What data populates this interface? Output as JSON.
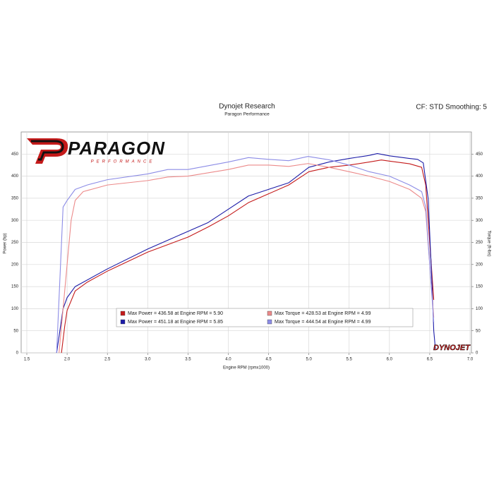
{
  "chart_data": {
    "type": "line",
    "title": "Dynojet Research",
    "subtitle": "Paragon Performance",
    "annotation": "CF: STD Smoothing: 5",
    "logo": {
      "text": "PARAGON",
      "tagline": "PERFORMANCE"
    },
    "brand": "DYNOJET",
    "xlabel": "Engine RPM (rpmx1000)",
    "ylabel": "Power (hp)",
    "y2label": "Torque (ft-lbs)",
    "xlim": [
      1.5,
      7.0
    ],
    "xticks": [
      1.5,
      {
        "value": 2,
        "label": "2.0"
      },
      2.5,
      {
        "value": 3,
        "label": "3.0"
      },
      3.5,
      {
        "value": 4,
        "label": "4.0"
      },
      4.5,
      {
        "value": 5,
        "label": "5.0"
      },
      5.5,
      {
        "value": 6,
        "label": "6.0"
      },
      6.5,
      {
        "value": 7,
        "label": "7.0"
      }
    ],
    "ylim": [
      0,
      500
    ],
    "yticks": [
      0,
      50,
      100,
      150,
      200,
      250,
      300,
      350,
      400,
      450
    ],
    "y2lim": [
      0,
      500
    ],
    "y2ticks": [
      0,
      50,
      100,
      150,
      200,
      250,
      300,
      350,
      400,
      450
    ],
    "grid": true,
    "legend": "lower center",
    "series": [
      {
        "name": "Max Power = 436.58 at Engine RPM = 5.90",
        "color": "#c41a1a",
        "x": [
          1.93,
          1.97,
          2.0,
          2.1,
          2.25,
          2.5,
          3.0,
          3.25,
          3.5,
          3.75,
          4.0,
          4.25,
          4.5,
          4.75,
          5.0,
          5.25,
          5.5,
          5.75,
          5.9,
          6.0,
          6.25,
          6.4,
          6.45,
          6.5,
          6.55
        ],
        "values": [
          0,
          60,
          96,
          140,
          160,
          185,
          228,
          245,
          262,
          285,
          310,
          340,
          360,
          380,
          410,
          420,
          425,
          432,
          436.58,
          434,
          428,
          420,
          380,
          250,
          120
        ]
      },
      {
        "name": "Max Power = 451.18 at Engine RPM = 5.85",
        "color": "#1c1ca8",
        "x": [
          1.87,
          1.95,
          2.0,
          2.1,
          2.5,
          3.0,
          3.25,
          3.5,
          3.75,
          4.0,
          4.25,
          4.5,
          4.75,
          5.0,
          5.25,
          5.5,
          5.75,
          5.85,
          6.0,
          6.25,
          6.35,
          6.42,
          6.48,
          6.53,
          6.55,
          6.57
        ],
        "values": [
          0,
          100,
          125,
          150,
          190,
          235,
          255,
          275,
          295,
          325,
          355,
          370,
          385,
          420,
          432,
          440,
          447,
          451.18,
          446,
          440,
          438,
          430,
          350,
          150,
          50,
          10
        ]
      },
      {
        "name": "Max Torque = 428.53 at Engine RPM = 4.99",
        "color": "#ec8a8a",
        "axis": "y2",
        "x": [
          1.9,
          2.0,
          2.05,
          2.1,
          2.2,
          2.5,
          3.0,
          3.25,
          3.5,
          4.0,
          4.25,
          4.5,
          4.75,
          4.99,
          5.25,
          5.5,
          5.75,
          6.0,
          6.25,
          6.4,
          6.45,
          6.5,
          6.55
        ],
        "values": [
          0,
          200,
          300,
          345,
          365,
          380,
          390,
          398,
          400,
          415,
          425,
          425,
          422,
          428.53,
          420,
          410,
          400,
          388,
          370,
          350,
          320,
          200,
          80
        ]
      },
      {
        "name": "Max Torque = 444.54 at Engine RPM = 4.99",
        "color": "#8c8ce6",
        "axis": "y2",
        "x": [
          1.87,
          1.95,
          2.0,
          2.1,
          2.25,
          2.5,
          3.0,
          3.25,
          3.5,
          4.0,
          4.25,
          4.5,
          4.75,
          4.99,
          5.25,
          5.5,
          5.75,
          6.0,
          6.25,
          6.4,
          6.45,
          6.5,
          6.55
        ],
        "values": [
          0,
          330,
          345,
          370,
          380,
          392,
          405,
          415,
          415,
          432,
          442,
          438,
          435,
          444.54,
          437,
          425,
          410,
          400,
          380,
          365,
          330,
          200,
          70
        ]
      }
    ]
  }
}
